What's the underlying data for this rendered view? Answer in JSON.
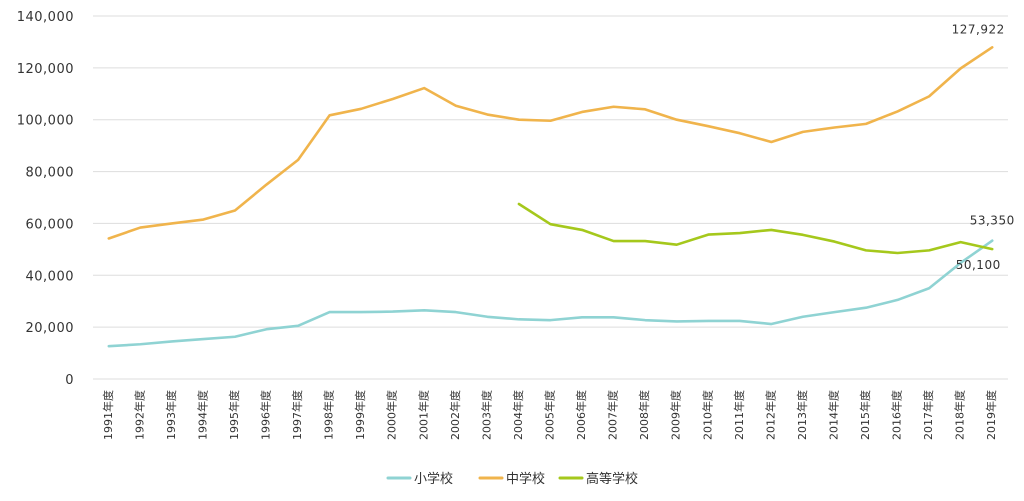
{
  "chart_data": {
    "type": "line",
    "categories": [
      "1991年度",
      "1992年度",
      "1993年度",
      "1994年度",
      "1995年度",
      "1996年度",
      "1997年度",
      "1998年度",
      "1999年度",
      "2000年度",
      "2001年度",
      "2002年度",
      "2003年度",
      "2004年度",
      "2005年度",
      "2006年度",
      "2007年度",
      "2008年度",
      "2009年度",
      "2010年度",
      "2011年度",
      "2012年度",
      "2013年度",
      "2014年度",
      "2015年度",
      "2016年度",
      "2017年度",
      "2018年度",
      "2019年度"
    ],
    "ylim": [
      0,
      140000
    ],
    "yticks": [
      0,
      20000,
      40000,
      60000,
      80000,
      100000,
      120000,
      140000
    ],
    "ytick_labels": [
      "0",
      "20,000",
      "40,000",
      "60,000",
      "80,000",
      "100,000",
      "120,000",
      "140,000"
    ],
    "grid": true,
    "legend_position": "bottom",
    "series": [
      {
        "name": "小学校",
        "color": "#8fd3d3",
        "values": [
          12645,
          13400,
          14500,
          15400,
          16300,
          19200,
          20500,
          25800,
          25800,
          26000,
          26500,
          25800,
          24000,
          23000,
          22700,
          23800,
          23800,
          22700,
          22200,
          22400,
          22400,
          21200,
          24000,
          25800,
          27500,
          30500,
          35000,
          44800,
          53350
        ]
      },
      {
        "name": "中学校",
        "color": "#f0b44c",
        "values": [
          54200,
          58400,
          60000,
          61500,
          65000,
          75000,
          84500,
          101700,
          104200,
          108000,
          112200,
          105400,
          102000,
          100000,
          99600,
          103000,
          105000,
          104000,
          100000,
          97500,
          94800,
          91400,
          95300,
          97000,
          98400,
          103200,
          109000,
          119800,
          127922
        ]
      },
      {
        "name": "高等学校",
        "color": "#a5c81c",
        "values": [
          null,
          null,
          null,
          null,
          null,
          null,
          null,
          null,
          null,
          null,
          null,
          null,
          null,
          67500,
          59700,
          57500,
          53200,
          53200,
          51800,
          55700,
          56300,
          57500,
          55600,
          53000,
          49600,
          48600,
          49600,
          52800,
          50100
        ]
      }
    ],
    "annotations": [
      {
        "series": 1,
        "index": 28,
        "text": "127,922"
      },
      {
        "series": 0,
        "index": 28,
        "text": "53,350"
      },
      {
        "series": 2,
        "index": 28,
        "text": "50,100"
      }
    ]
  }
}
